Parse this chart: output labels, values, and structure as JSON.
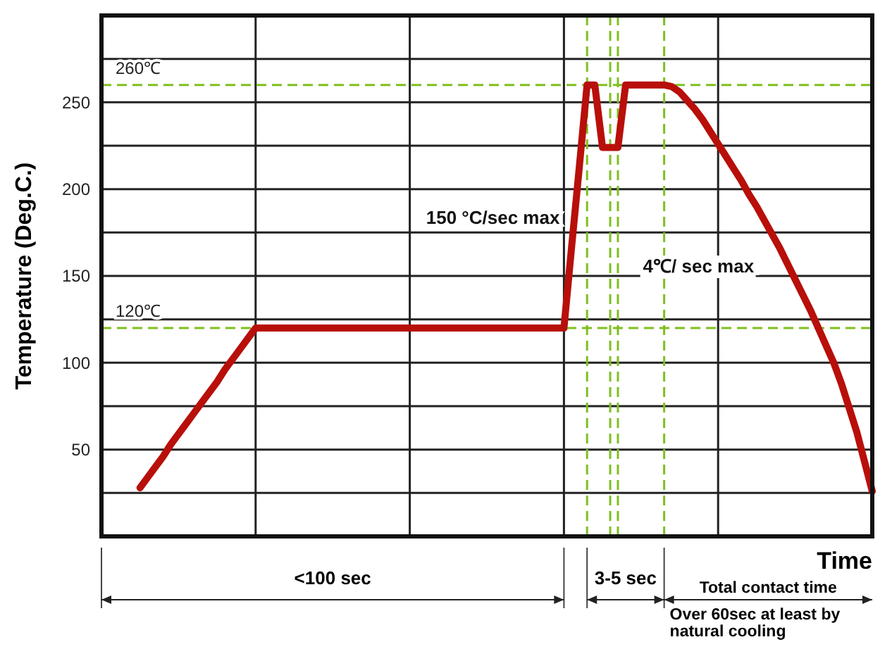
{
  "chart_data": {
    "type": "line",
    "xlabel": "Time",
    "ylabel": "Temperature (Deg.C.)",
    "categories": [
      null,
      null,
      null,
      null,
      null,
      null,
      null,
      null,
      null,
      null,
      null,
      null,
      null,
      null,
      null,
      null,
      null,
      null,
      null,
      null,
      null,
      null,
      null,
      null,
      null,
      null,
      null,
      null,
      null,
      null,
      null,
      null,
      null,
      null,
      null,
      null,
      null,
      null,
      null,
      null,
      null,
      null,
      null,
      null,
      null,
      null,
      null,
      null,
      null,
      null,
      null,
      null,
      null,
      null,
      null,
      null,
      null,
      null,
      null,
      null,
      null,
      null,
      null,
      null,
      null,
      null,
      null,
      null,
      null,
      null,
      null,
      null,
      null,
      null,
      null,
      null,
      null,
      null,
      null,
      null,
      null,
      null,
      null,
      null,
      null,
      null,
      null,
      null,
      null,
      null,
      null,
      null,
      null,
      null,
      null,
      null,
      null,
      null,
      null,
      null,
      null
    ],
    "series": [
      {
        "color": "#b80f0a",
        "values": [
          null,
          null,
          null,
          null,
          null,
          28,
          34,
          40,
          46,
          53,
          59,
          65,
          71,
          77,
          83,
          89,
          96,
          102,
          108,
          114,
          120,
          120,
          120,
          120,
          120,
          120,
          120,
          120,
          120,
          120,
          120,
          120,
          120,
          120,
          120,
          120,
          120,
          120,
          120,
          120,
          120,
          120,
          120,
          120,
          120,
          120,
          120,
          120,
          120,
          120,
          120,
          120,
          120,
          120,
          120,
          120,
          120,
          120,
          120,
          120,
          120,
          167,
          213,
          260,
          260,
          224,
          224,
          224,
          260,
          260,
          260,
          260,
          260,
          260,
          259,
          256,
          251,
          246,
          240,
          233,
          226,
          219,
          212,
          205,
          197,
          190,
          182,
          174,
          166,
          157,
          148,
          139,
          130,
          120,
          110,
          100,
          88,
          74,
          60,
          43,
          26
        ]
      }
    ],
    "ylim": [
      0,
      300
    ],
    "yticks": [
      {
        "value": 25,
        "label": null
      },
      50,
      {
        "value": 75,
        "label": null
      },
      100,
      {
        "value": 125,
        "label": null
      },
      150,
      {
        "value": 175,
        "label": null
      },
      200,
      {
        "value": 225,
        "label": null
      },
      250,
      {
        "value": 275,
        "label": null
      }
    ],
    "grid": true,
    "marker": "none",
    "line_style": "solid",
    "ref_lines": [
      {
        "axis": "y",
        "value": 260,
        "label": "260℃",
        "color": "#7fbf1f",
        "line_style": "dashed"
      },
      {
        "axis": "y",
        "value": 120,
        "label": "120℃",
        "color": "#7fbf1f",
        "line_style": "dashed"
      }
    ],
    "annotations": [
      "150 °C/sec max",
      "4℃/ sec max",
      "<100 sec",
      "3-5 sec",
      "Total contact time",
      "Over 60sec at least by natural cooling"
    ]
  }
}
